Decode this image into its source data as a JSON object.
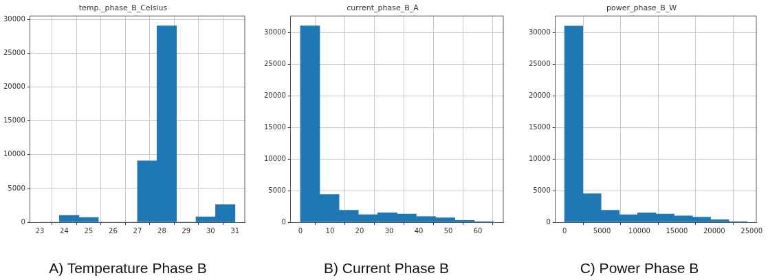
{
  "chart_data": [
    {
      "type": "histogram",
      "title": "temp._phase_B_Celsius",
      "color": "#1f77b4",
      "bins": [
        23,
        23.8,
        24.6,
        25.4,
        26.2,
        27,
        27.8,
        28.6,
        29.4,
        30.2,
        31
      ],
      "values": [
        0,
        1000,
        700,
        0,
        0,
        9100,
        29100,
        0,
        800,
        2600
      ],
      "xlim": [
        22.6,
        31.4
      ],
      "xticks": [
        23,
        24,
        25,
        26,
        27,
        28,
        29,
        30,
        31
      ],
      "ylim": [
        0,
        30555
      ],
      "yticks": [
        0,
        5000,
        10000,
        15000,
        20000,
        25000,
        30000
      ],
      "grid": true,
      "annotations": [
        "A) Temperature Phase B"
      ]
    },
    {
      "type": "histogram",
      "title": "current_phase_B_A",
      "color": "#1f77b4",
      "bins": [
        0,
        6.53,
        13.06,
        19.59,
        26.12,
        32.65,
        39.18,
        45.71,
        52.24,
        58.77,
        65.3
      ],
      "values": [
        31100,
        4400,
        1900,
        1200,
        1500,
        1300,
        900,
        700,
        300,
        100
      ],
      "xlim": [
        -3.27,
        68.57
      ],
      "xticks": [
        0,
        10,
        20,
        30,
        40,
        50,
        60
      ],
      "ylim": [
        0,
        32655
      ],
      "yticks": [
        0,
        5000,
        10000,
        15000,
        20000,
        25000,
        30000
      ],
      "grid": true,
      "annotations": [
        "B) Current Phase B"
      ]
    },
    {
      "type": "histogram",
      "title": "power_phase_B_W",
      "color": "#1f77b4",
      "bins": [
        0,
        2440,
        4880,
        7320,
        9760,
        12200,
        14640,
        17080,
        19520,
        21960,
        24400
      ],
      "values": [
        31000,
        4500,
        1900,
        1200,
        1500,
        1300,
        1000,
        800,
        400,
        100
      ],
      "xlim": [
        -1220,
        25620
      ],
      "xticks": [
        0,
        5000,
        10000,
        15000,
        20000,
        25000
      ],
      "ylim": [
        0,
        32600
      ],
      "yticks": [
        0,
        5000,
        10000,
        15000,
        20000,
        25000,
        30000
      ],
      "grid": true,
      "annotations": [
        "C) Power Phase B"
      ]
    }
  ]
}
